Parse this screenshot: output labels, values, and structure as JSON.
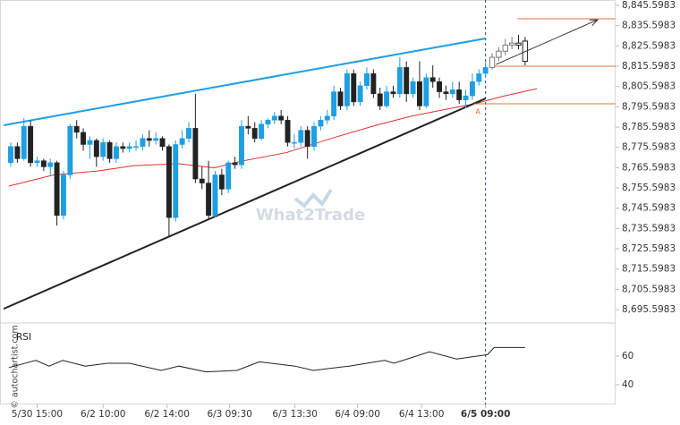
{
  "chart_data": {
    "type": "candlestick",
    "watermark": "What2Trade",
    "copyright": "© autochartist.com",
    "indicator_label": "RSI",
    "level_label": "A",
    "xlim": [
      -1.63,
      91.72
    ],
    "xticks": [
      {
        "value": 4,
        "label": "5/30 15:00"
      },
      {
        "value": 14,
        "label": "6/2 10:00"
      },
      {
        "value": 23.7,
        "label": "6/2 14:00"
      },
      {
        "value": 33.2,
        "label": "6/3 09:30"
      },
      {
        "value": 43.1,
        "label": "6/3 13:30"
      },
      {
        "value": 52.6,
        "label": "6/4 09:00"
      },
      {
        "value": 62.3,
        "label": "6/4 13:00"
      },
      {
        "value": 72,
        "label": "6/5 09:00"
      }
    ],
    "marker_x": 72,
    "ylim": [
      8689.43,
      8848.25
    ],
    "yticks": [
      {
        "value": 8845.5983,
        "label": "8,845.5983"
      },
      {
        "value": 8835.5983,
        "label": "8,835.5983"
      },
      {
        "value": 8825.5983,
        "label": "8,825.5983"
      },
      {
        "value": 8815.5983,
        "label": "8,815.5983"
      },
      {
        "value": 8805.5983,
        "label": "8,805.5983"
      },
      {
        "value": 8795.5983,
        "label": "8,795.5983"
      },
      {
        "value": 8785.5983,
        "label": "8,785.5983"
      },
      {
        "value": 8775.5983,
        "label": "8,775.5983"
      },
      {
        "value": 8765.5983,
        "label": "8,765.5983"
      },
      {
        "value": 8755.5983,
        "label": "8,755.5983"
      },
      {
        "value": 8745.5983,
        "label": "8,745.5983"
      },
      {
        "value": 8735.5983,
        "label": "8,735.5983"
      },
      {
        "value": 8725.5983,
        "label": "8,725.5983"
      },
      {
        "value": 8715.5983,
        "label": "8,715.5983"
      },
      {
        "value": 8705.5983,
        "label": "8,705.5983"
      },
      {
        "value": 8695.5983,
        "label": "8,695.5983"
      }
    ],
    "up_color": "#1e9fe3",
    "down_color": "#222222",
    "open": [
      8768,
      8776,
      8770,
      8786,
      8768,
      8769,
      8766,
      8768,
      8742,
      8762,
      8786,
      8783,
      8777,
      8779,
      8771,
      8778,
      8770,
      8776,
      8775,
      8776,
      8776,
      8780,
      8779,
      8780,
      8776,
      8741,
      8777,
      8780,
      8785,
      8760,
      8758,
      8742,
      8762,
      8755,
      8768,
      8767,
      8786,
      8785,
      8780,
      8787,
      8789,
      8791,
      8789,
      8778,
      8778,
      8784,
      8776,
      8786,
      8789,
      8791,
      8803,
      8796,
      8812,
      8798,
      8806,
      8812,
      8802,
      8796,
      8803,
      8802,
      8815,
      8802,
      8808,
      8796,
      8810,
      8808,
      8803,
      8802,
      8804,
      8799,
      8801,
      8808,
      8812,
      8815,
      8820,
      8823,
      8826,
      8827,
      8828
    ],
    "high": [
      8778,
      8778,
      8790,
      8789,
      8771,
      8770,
      8770,
      8769,
      8764,
      8787,
      8789,
      8785,
      8781,
      8780,
      8780,
      8779,
      8778,
      8778,
      8778,
      8779,
      8782,
      8784,
      8783,
      8781,
      8777,
      8779,
      8784,
      8788,
      8802,
      8766,
      8769,
      8764,
      8765,
      8769,
      8771,
      8789,
      8791,
      8788,
      8789,
      8790,
      8793,
      8794,
      8791,
      8782,
      8786,
      8786,
      8788,
      8791,
      8794,
      8806,
      8805,
      8814,
      8814,
      8808,
      8815,
      8814,
      8805,
      8806,
      8806,
      8820,
      8818,
      8810,
      8818,
      8812,
      8816,
      8810,
      8806,
      8808,
      8808,
      8804,
      8812,
      8814,
      8818,
      8822,
      8825,
      8829,
      8830,
      8831,
      8830
    ],
    "low": [
      8766,
      8768,
      8769,
      8766,
      8766,
      8764,
      8762,
      8737,
      8740,
      8760,
      8780,
      8774,
      8770,
      8766,
      8769,
      8768,
      8768,
      8773,
      8773,
      8774,
      8774,
      8776,
      8777,
      8774,
      8732,
      8739,
      8775,
      8778,
      8758,
      8755,
      8740,
      8741,
      8752,
      8753,
      8765,
      8765,
      8782,
      8778,
      8779,
      8785,
      8787,
      8787,
      8776,
      8775,
      8776,
      8770,
      8774,
      8784,
      8787,
      8789,
      8794,
      8794,
      8796,
      8796,
      8804,
      8800,
      8794,
      8795,
      8800,
      8800,
      8798,
      8800,
      8794,
      8795,
      8805,
      8800,
      8799,
      8800,
      8797,
      8795,
      8799,
      8806,
      8810,
      8814,
      8818,
      8821,
      8824,
      8824,
      8816
    ],
    "close": [
      8776,
      8770,
      8786,
      8768,
      8769,
      8766,
      8768,
      8742,
      8762,
      8786,
      8783,
      8777,
      8779,
      8771,
      8778,
      8770,
      8776,
      8775,
      8776,
      8776,
      8780,
      8779,
      8780,
      8776,
      8741,
      8777,
      8780,
      8785,
      8760,
      8758,
      8742,
      8762,
      8755,
      8768,
      8767,
      8786,
      8785,
      8780,
      8787,
      8789,
      8791,
      8789,
      8778,
      8778,
      8784,
      8776,
      8786,
      8789,
      8791,
      8803,
      8796,
      8812,
      8798,
      8806,
      8812,
      8802,
      8796,
      8803,
      8802,
      8815,
      8802,
      8808,
      8796,
      8810,
      8808,
      8803,
      8802,
      8804,
      8799,
      8801,
      8808,
      8812,
      8815,
      8820,
      8823,
      8826,
      8827,
      8826,
      8818
    ],
    "moving_average": {
      "color": "#e0312f",
      "x": [
        -0.3,
        6.5,
        13.3,
        18.7,
        25.5,
        30.9,
        35,
        41.8,
        48.6,
        55.4,
        60.8,
        66.2,
        70.3,
        74.4,
        79.8
      ],
      "values": [
        8756.5,
        8762,
        8764,
        8766.6,
        8767.5,
        8765.5,
        8768.8,
        8773,
        8780,
        8786.5,
        8791,
        8794.5,
        8797,
        8800.6,
        8804.5
      ]
    },
    "upper_line": {
      "color": "#1e9fe3",
      "x": [
        -1.08,
        72
      ],
      "values": [
        8786.5,
        8829.3
      ]
    },
    "lower_line": {
      "color": "#222222",
      "x": [
        -1.08,
        72
      ],
      "values": [
        8696.0,
        8799.7
      ]
    },
    "arrow": {
      "color": "#333333",
      "x": [
        73.6,
        89
      ],
      "values": [
        8816.5,
        8838.5
      ]
    },
    "levels_color": "#e8733a",
    "levels": [
      {
        "value": 8839.0,
        "x_start": 76.8
      },
      {
        "value": 8815.6,
        "x_start": 72.7
      },
      {
        "value": 8797.1,
        "x_start": 70.3
      }
    ],
    "rsi": {
      "color": "#222222",
      "ylim": [
        26.25,
        82.5
      ],
      "yticks": [
        40,
        60
      ],
      "x": [
        -0.3,
        3.8,
        5.8,
        7.9,
        11.3,
        14.7,
        18,
        22.8,
        25.5,
        29.6,
        34.3,
        37.7,
        43.1,
        45.9,
        51.3,
        54,
        56.7,
        58.1,
        61.5,
        63.5,
        67.6,
        72.3,
        73.3,
        78
      ],
      "values": [
        52,
        57,
        53,
        57,
        53,
        55,
        55,
        50,
        53,
        49,
        50,
        56,
        53,
        50,
        53,
        55,
        57,
        55,
        60,
        63,
        58,
        61,
        66,
        66
      ]
    }
  }
}
